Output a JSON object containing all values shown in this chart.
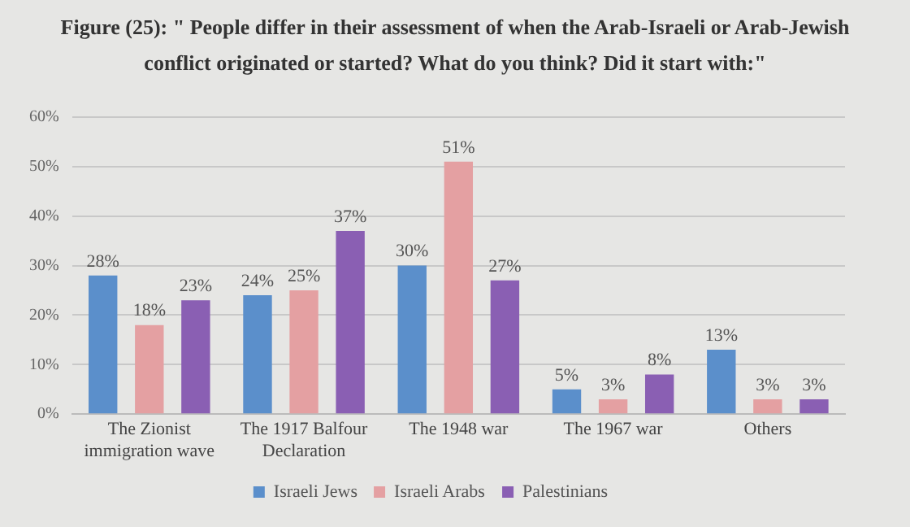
{
  "chart_data": {
    "type": "bar",
    "title": "Figure (25): \" People differ in their assessment of when the Arab-Israeli or Arab-Jewish conflict originated or started? What do you think? Did it start with:\"",
    "categories": [
      "The Zionist immigration wave",
      "The 1917 Balfour Declaration",
      "The 1948 war",
      "The 1967 war",
      "Others"
    ],
    "series": [
      {
        "name": "Israeli Jews",
        "color": "#5b8fcb",
        "values": [
          28,
          24,
          30,
          5,
          13
        ],
        "value_labels": [
          "28%",
          "24%",
          "30%",
          "5%",
          "13%"
        ]
      },
      {
        "name": "Israeli Arabs",
        "color": "#e4a0a2",
        "values": [
          18,
          25,
          51,
          3,
          3
        ],
        "value_labels": [
          "18%",
          "25%",
          "51%",
          "3%",
          "3%"
        ]
      },
      {
        "name": "Palestinians",
        "color": "#8a5fb3",
        "values": [
          23,
          37,
          27,
          8,
          3
        ],
        "value_labels": [
          "23%",
          "37%",
          "27%",
          "8%",
          "3%"
        ]
      }
    ],
    "ylim": [
      0,
      60
    ],
    "yticks": [
      {
        "value": 0,
        "label": "0%"
      },
      {
        "value": 10,
        "label": "10%"
      },
      {
        "value": 20,
        "label": "20%"
      },
      {
        "value": 30,
        "label": "30%"
      },
      {
        "value": 40,
        "label": "40%"
      },
      {
        "value": 50,
        "label": "50%"
      },
      {
        "value": 60,
        "label": "60%"
      }
    ],
    "grid": "y",
    "legend": "bottom"
  }
}
